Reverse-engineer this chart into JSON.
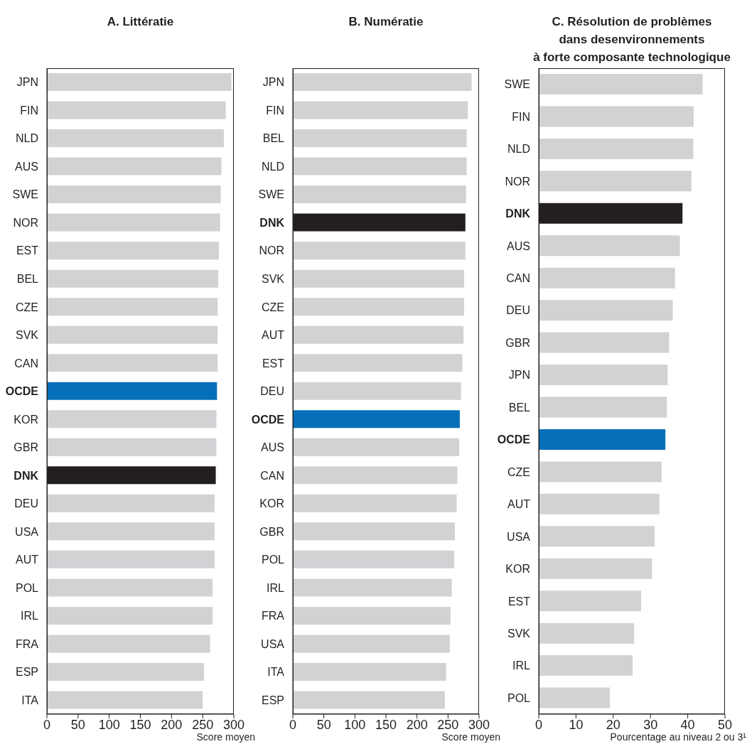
{
  "chart_data": [
    {
      "type": "bar",
      "orientation": "horizontal",
      "title": "A. Littératie",
      "xlabel": "Score moyen",
      "categories": [
        "JPN",
        "FIN",
        "NLD",
        "AUS",
        "SWE",
        "NOR",
        "EST",
        "BEL",
        "CZE",
        "SVK",
        "CAN",
        "OCDE",
        "KOR",
        "GBR",
        "DNK",
        "DEU",
        "USA",
        "AUT",
        "POL",
        "IRL",
        "FRA",
        "ESP",
        "ITA"
      ],
      "values": [
        296,
        287,
        284,
        280,
        279,
        278,
        276,
        275,
        274,
        274,
        274,
        273,
        272,
        272,
        271,
        269,
        269,
        269,
        266,
        266,
        262,
        252,
        250
      ],
      "colors": [
        "#d1d2d4",
        "#d1d2d4",
        "#d1d2d4",
        "#d1d2d4",
        "#d1d2d4",
        "#d1d2d4",
        "#d1d2d4",
        "#d1d2d4",
        "#d1d2d4",
        "#d1d2d4",
        "#d1d2d4",
        "#0570b9",
        "#d1d2d4",
        "#d1d2d4",
        "#231f20",
        "#d1d2d4",
        "#d1d2d4",
        "#d1d2d4",
        "#d1d2d4",
        "#d1d2d4",
        "#d1d2d4",
        "#d1d2d4",
        "#d1d2d4"
      ],
      "xlim": [
        0,
        300
      ],
      "xticks": [
        0,
        50,
        100,
        150,
        200,
        250,
        300
      ]
    },
    {
      "type": "bar",
      "orientation": "horizontal",
      "title": "B. Numératie",
      "xlabel": "Score moyen",
      "categories": [
        "JPN",
        "FIN",
        "BEL",
        "NLD",
        "SWE",
        "DNK",
        "NOR",
        "SVK",
        "CZE",
        "AUT",
        "EST",
        "DEU",
        "OCDE",
        "AUS",
        "CAN",
        "KOR",
        "GBR",
        "POL",
        "IRL",
        "FRA",
        "USA",
        "ITA",
        "ESP"
      ],
      "values": [
        288,
        282,
        280,
        280,
        279,
        278,
        278,
        276,
        276,
        275,
        273,
        271,
        269,
        268,
        265,
        264,
        261,
        260,
        256,
        254,
        253,
        247,
        245
      ],
      "colors": [
        "#d1d2d4",
        "#d1d2d4",
        "#d1d2d4",
        "#d1d2d4",
        "#d1d2d4",
        "#231f20",
        "#d1d2d4",
        "#d1d2d4",
        "#d1d2d4",
        "#d1d2d4",
        "#d1d2d4",
        "#d1d2d4",
        "#0570b9",
        "#d1d2d4",
        "#d1d2d4",
        "#d1d2d4",
        "#d1d2d4",
        "#d1d2d4",
        "#d1d2d4",
        "#d1d2d4",
        "#d1d2d4",
        "#d1d2d4",
        "#d1d2d4"
      ],
      "xlim": [
        0,
        300
      ],
      "xticks": [
        0,
        50,
        100,
        150,
        200,
        250,
        300
      ]
    },
    {
      "type": "bar",
      "orientation": "horizontal",
      "title": "C. Résolution de problèmes\ndans desenvironnements\nà forte composante technologique",
      "xlabel": "Pourcentage au niveau 2 ou 3¹",
      "categories": [
        "SWE",
        "FIN",
        "NLD",
        "NOR",
        "DNK",
        "AUS",
        "CAN",
        "DEU",
        "GBR",
        "JPN",
        "BEL",
        "OCDE",
        "CZE",
        "AUT",
        "USA",
        "KOR",
        "EST",
        "SVK",
        "IRL",
        "POL"
      ],
      "values": [
        44.0,
        41.6,
        41.5,
        41.0,
        38.6,
        37.9,
        36.6,
        36.0,
        35.0,
        34.6,
        34.4,
        34.0,
        33.0,
        32.4,
        31.1,
        30.4,
        27.5,
        25.6,
        25.2,
        19.1
      ],
      "colors": [
        "#d1d2d4",
        "#d1d2d4",
        "#d1d2d4",
        "#d1d2d4",
        "#231f20",
        "#d1d2d4",
        "#d1d2d4",
        "#d1d2d4",
        "#d1d2d4",
        "#d1d2d4",
        "#d1d2d4",
        "#0570b9",
        "#d1d2d4",
        "#d1d2d4",
        "#d1d2d4",
        "#d1d2d4",
        "#d1d2d4",
        "#d1d2d4",
        "#d1d2d4",
        "#d1d2d4"
      ],
      "xlim": [
        0,
        50
      ],
      "xticks": [
        0,
        10,
        20,
        30,
        40,
        50
      ]
    }
  ]
}
